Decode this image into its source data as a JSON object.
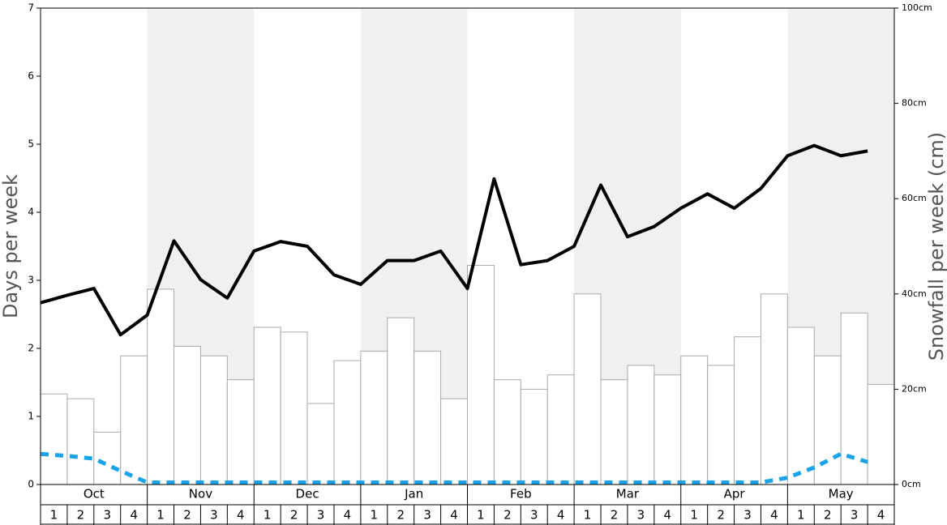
{
  "chart_data": {
    "type": "bar-line",
    "y_label": "Days per week",
    "y2_label": "Snowfall per week (cm)",
    "months": [
      "Oct",
      "Nov",
      "Dec",
      "Jan",
      "Feb",
      "Mar",
      "Apr",
      "May"
    ],
    "categories": [
      "1",
      "2",
      "3",
      "4",
      "1",
      "2",
      "3",
      "4",
      "1",
      "2",
      "3",
      "4",
      "1",
      "2",
      "3",
      "4",
      "1",
      "2",
      "3",
      "4",
      "1",
      "2",
      "3",
      "4",
      "1",
      "2",
      "3",
      "4",
      "1",
      "2",
      "3",
      "4"
    ],
    "ylim": [
      0,
      7
    ],
    "yticks": [
      0,
      1,
      2,
      3,
      4,
      5,
      6,
      7
    ],
    "y2lim": [
      0,
      100
    ],
    "y2ticks": [
      {
        "value": 0,
        "label": "0cm"
      },
      {
        "value": 20,
        "label": "20cm"
      },
      {
        "value": 40,
        "label": "40cm"
      },
      {
        "value": 60,
        "label": "60cm"
      },
      {
        "value": 80,
        "label": "80cm"
      },
      {
        "value": 100,
        "label": "100cm"
      }
    ],
    "series": [
      {
        "type": "bar",
        "axis": "y2",
        "color": "#ffffff",
        "values": [
          19,
          18,
          11,
          27,
          41,
          29,
          27,
          22,
          33,
          32,
          17,
          26,
          28,
          35,
          28,
          18,
          46,
          22,
          20,
          23,
          40,
          22,
          25,
          23,
          27,
          25,
          31,
          40,
          33,
          27,
          36,
          21
        ]
      },
      {
        "type": "line",
        "color": "#000000",
        "values": [
          2.67,
          2.78,
          2.88,
          2.2,
          2.49,
          3.58,
          3.01,
          2.74,
          3.43,
          3.57,
          3.5,
          3.08,
          2.94,
          3.29,
          3.29,
          3.43,
          2.88,
          4.49,
          3.23,
          3.29,
          3.5,
          4.4,
          3.64,
          3.79,
          4.06,
          4.27,
          4.06,
          4.35,
          4.83,
          4.98,
          4.83,
          4.9
        ]
      },
      {
        "type": "dashed-line",
        "color": "#1aa3e8",
        "values": [
          0.45,
          0.42,
          0.38,
          0.2,
          0.03,
          0.03,
          0.03,
          0.03,
          0.03,
          0.03,
          0.03,
          0.03,
          0.03,
          0.03,
          0.03,
          0.03,
          0.03,
          0.03,
          0.03,
          0.03,
          0.03,
          0.03,
          0.03,
          0.03,
          0.03,
          0.03,
          0.03,
          0.03,
          0.1,
          0.25,
          0.45,
          0.33
        ]
      }
    ]
  }
}
